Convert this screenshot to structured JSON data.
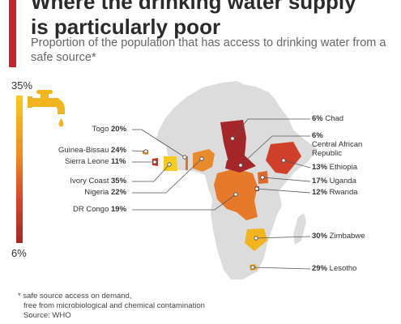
{
  "header": {
    "title_lines": [
      "Where the drinking water supply",
      "is particularly poor"
    ],
    "subtitle": "Proportion of the population that has access to drinking water from a safe source*"
  },
  "scale": {
    "max_label": "35%",
    "min_label": "6%",
    "colors": [
      "#f7cc1d",
      "#f28b1f",
      "#d8442a",
      "#a52628"
    ]
  },
  "icons": {
    "faucet": "faucet-icon"
  },
  "countries": [
    {
      "id": "togo",
      "name": "Togo",
      "value_label": "20%",
      "value": 20,
      "color": "#e0732a"
    },
    {
      "id": "guinea-bissau",
      "name": "Guinea-Bissau",
      "value_label": "24%",
      "value": 24,
      "color": "#eb8a24"
    },
    {
      "id": "sierra-leone",
      "name": "Sierra Leone",
      "value_label": "11%",
      "value": 11,
      "color": "#c33a2a"
    },
    {
      "id": "ivory-coast",
      "name": "Ivory Coast",
      "value_label": "35%",
      "value": 35,
      "color": "#f7cc1d"
    },
    {
      "id": "nigeria",
      "name": "Nigeria",
      "value_label": "22%",
      "value": 22,
      "color": "#e88a2e"
    },
    {
      "id": "dr-congo",
      "name": "DR Congo",
      "value_label": "19%",
      "value": 19,
      "color": "#e77a2a"
    },
    {
      "id": "chad",
      "name": "Chad",
      "value_label": "6%",
      "value": 6,
      "color": "#a52628"
    },
    {
      "id": "central-african-republic",
      "name": "Central African Republic",
      "value_label": "6%",
      "value": 6,
      "color": "#a52628"
    },
    {
      "id": "ethiopia",
      "name": "Ethiopia",
      "value_label": "13%",
      "value": 13,
      "color": "#cf3f29"
    },
    {
      "id": "uganda",
      "name": "Uganda",
      "value_label": "17%",
      "value": 17,
      "color": "#de6a2a"
    },
    {
      "id": "rwanda",
      "name": "Rwanda",
      "value_label": "12%",
      "value": 12,
      "color": "#c8422a"
    },
    {
      "id": "zimbabwe",
      "name": "Zimbabwe",
      "value_label": "30%",
      "value": 30,
      "color": "#f3b51f"
    },
    {
      "id": "lesotho",
      "name": "Lesotho",
      "value_label": "29%",
      "value": 29,
      "color": "#f2a824"
    }
  ],
  "footnote": {
    "lines": [
      "* safe source access on demand,",
      "free from microbiological and chemical contamination"
    ],
    "source": "Source: WHO"
  }
}
